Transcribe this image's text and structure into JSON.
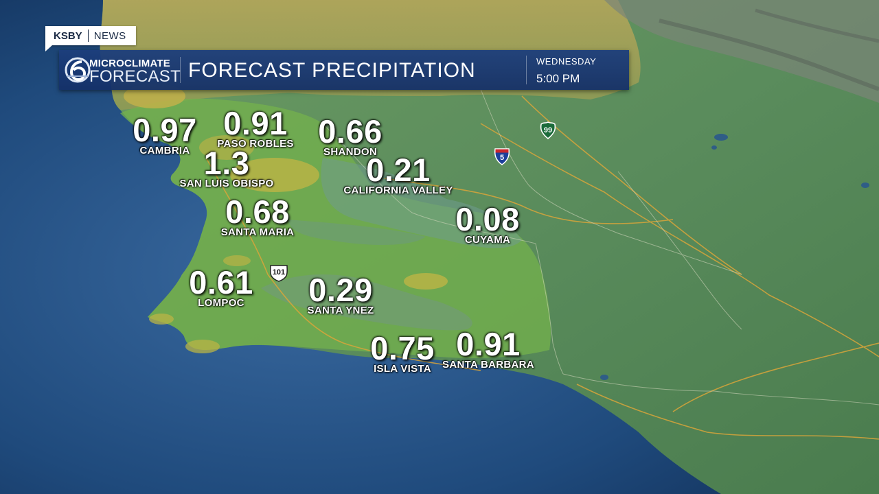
{
  "brand": {
    "station": "KSBY",
    "section": "NEWS"
  },
  "banner": {
    "logo_top": "MICROCLIMATE",
    "logo_bottom": "FORECAST",
    "title": "FORECAST PRECIPITATION",
    "day": "WEDNESDAY",
    "time": "5:00 PM"
  },
  "locations": [
    {
      "name": "CAMBRIA",
      "value": "0.97"
    },
    {
      "name": "PASO ROBLES",
      "value": "0.91"
    },
    {
      "name": "SHANDON",
      "value": "0.66"
    },
    {
      "name": "SAN LUIS OBISPO",
      "value": "1.3"
    },
    {
      "name": "CALIFORNIA VALLEY",
      "value": "0.21"
    },
    {
      "name": "SANTA MARIA",
      "value": "0.68"
    },
    {
      "name": "CUYAMA",
      "value": "0.08"
    },
    {
      "name": "LOMPOC",
      "value": "0.61"
    },
    {
      "name": "SANTA YNEZ",
      "value": "0.29"
    },
    {
      "name": "ISLA VISTA",
      "value": "0.75"
    },
    {
      "name": "SANTA BARBARA",
      "value": "0.91"
    }
  ],
  "highways": [
    {
      "label": "101",
      "icon": "us-route-shield-icon"
    },
    {
      "label": "5",
      "icon": "interstate-shield-icon"
    },
    {
      "label": "99",
      "icon": "state-route-shield-icon"
    }
  ],
  "colors": {
    "ocean": "#1f4a7a",
    "land": "#4f8a52",
    "precip_green": "#6fb04a",
    "precip_yellow": "#b9b445",
    "banner": "#1c3e7c"
  }
}
